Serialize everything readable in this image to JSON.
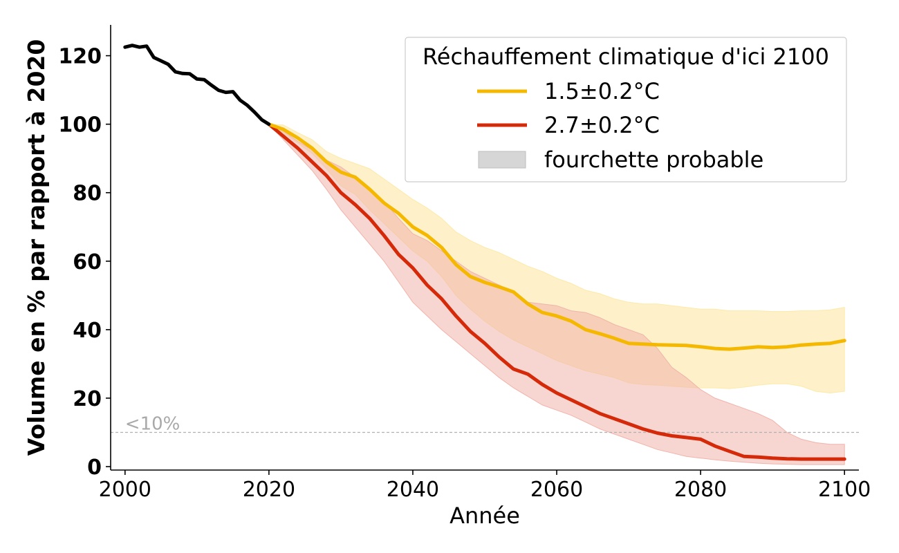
{
  "chart_data": {
    "type": "line",
    "xlabel": "Année",
    "ylabel": "Volume en % par rapport à 2020",
    "xlim": [
      1998,
      2102
    ],
    "ylim": [
      -1,
      129
    ],
    "xticks": [
      2000,
      2020,
      2040,
      2060,
      2080,
      2100
    ],
    "yticks": [
      0,
      20,
      40,
      60,
      80,
      100,
      120
    ],
    "reference_line": {
      "y": 10,
      "label": "<10%",
      "color": "#b0b0b0"
    },
    "legend": {
      "title": "Réchauffement climatique d'ici 2100",
      "position": "top-right",
      "entries": [
        {
          "label": "1.5±0.2°C",
          "kind": "line",
          "color": "#f5b800"
        },
        {
          "label": "2.7±0.2°C",
          "kind": "line",
          "color": "#d42a0a"
        },
        {
          "label": "fourchette probable",
          "kind": "patch",
          "color": "#d6d6d6"
        }
      ]
    },
    "historical": {
      "color": "#000000",
      "x": [
        2000,
        2001,
        2002,
        2003,
        2004,
        2005,
        2006,
        2007,
        2008,
        2009,
        2010,
        2011,
        2012,
        2013,
        2014,
        2015,
        2016,
        2017,
        2018,
        2019,
        2020
      ],
      "y": [
        122.5,
        123,
        122.5,
        122.8,
        119.5,
        118.5,
        117.5,
        115.3,
        114.8,
        114.7,
        113.2,
        113,
        111.4,
        109.9,
        109.3,
        109.5,
        107,
        105.5,
        103.5,
        101.3,
        100
      ]
    },
    "series": [
      {
        "name": "1.5±0.2°C",
        "color": "#f5b800",
        "band_color": "#fde9a8",
        "x": [
          2020,
          2022,
          2024,
          2026,
          2028,
          2030,
          2032,
          2034,
          2036,
          2038,
          2040,
          2042,
          2044,
          2046,
          2048,
          2050,
          2052,
          2054,
          2056,
          2058,
          2060,
          2062,
          2064,
          2066,
          2068,
          2070,
          2072,
          2074,
          2076,
          2078,
          2080,
          2082,
          2084,
          2086,
          2088,
          2090,
          2092,
          2094,
          2096,
          2098,
          2100
        ],
        "y": [
          100,
          98.5,
          96,
          93,
          89,
          86,
          84.5,
          81,
          77,
          74,
          70,
          67.5,
          64,
          59,
          55.5,
          53.8,
          52.5,
          51,
          47.5,
          45,
          44,
          42.5,
          40,
          38.8,
          37.5,
          36,
          35.8,
          35.6,
          35.5,
          35.4,
          35,
          34.5,
          34.3,
          34.6,
          35,
          34.8,
          35,
          35.5,
          35.8,
          36,
          36.8
        ],
        "lower": [
          100,
          97.5,
          94.5,
          91.5,
          87,
          82,
          79.5,
          75,
          71,
          67,
          63,
          60,
          55.5,
          50,
          46,
          42.5,
          39.5,
          37,
          35,
          33,
          31,
          29.5,
          28,
          27,
          26,
          24.5,
          24,
          23.8,
          23.5,
          23.2,
          23,
          23,
          22.8,
          23.2,
          23.8,
          24.2,
          24.2,
          23.5,
          22,
          21.5,
          22
        ],
        "upper": [
          100,
          99.8,
          97.5,
          95.5,
          92,
          90,
          88.5,
          87,
          84,
          81,
          78,
          75.5,
          72.5,
          68.5,
          66,
          64,
          62.5,
          60.5,
          58.5,
          57,
          55,
          53.5,
          51.5,
          50.5,
          49,
          48,
          47.5,
          47.5,
          47,
          46.5,
          46,
          46,
          45.5,
          45.5,
          45.5,
          45.3,
          45.3,
          45.5,
          45.5,
          45.8,
          46.5
        ]
      },
      {
        "name": "2.7±0.2°C",
        "color": "#d42a0a",
        "band_color": "#f1b3aa",
        "x": [
          2020,
          2022,
          2024,
          2026,
          2028,
          2030,
          2032,
          2034,
          2036,
          2038,
          2040,
          2042,
          2044,
          2046,
          2048,
          2050,
          2052,
          2054,
          2056,
          2058,
          2060,
          2062,
          2064,
          2066,
          2068,
          2070,
          2072,
          2074,
          2076,
          2078,
          2080,
          2082,
          2084,
          2086,
          2088,
          2090,
          2092,
          2094,
          2096,
          2098,
          2100
        ],
        "y": [
          100,
          96.5,
          93,
          89,
          85,
          80,
          76.5,
          72.5,
          67.5,
          62,
          58,
          53,
          49,
          44,
          39.5,
          36,
          32,
          28.5,
          27,
          24,
          21.5,
          19.5,
          17.5,
          15.5,
          14,
          12.5,
          11,
          9.8,
          9,
          8.5,
          8,
          6,
          4.5,
          3,
          2.8,
          2.5,
          2.3,
          2.2,
          2.2,
          2.2,
          2.2
        ],
        "lower": [
          100,
          95.5,
          91,
          86.5,
          81,
          75,
          70,
          65,
          60,
          54,
          48,
          44,
          40,
          36.5,
          33,
          29.5,
          26,
          23,
          20.5,
          18,
          16.5,
          15,
          13,
          11,
          9.5,
          8,
          6.5,
          5,
          4,
          3,
          2.5,
          2,
          1.6,
          1.3,
          1,
          0.8,
          0.7,
          0.6,
          0.6,
          0.6,
          0.6
        ],
        "upper": [
          100,
          98,
          95,
          92.5,
          89.5,
          87.5,
          84.5,
          81,
          77.5,
          72.5,
          68,
          66,
          63,
          60,
          57,
          55,
          53,
          51,
          48,
          47.5,
          47,
          45.5,
          45,
          43.5,
          41.5,
          40,
          38.5,
          34.5,
          29,
          26,
          22.5,
          20,
          18.5,
          17,
          15.5,
          13.5,
          10,
          8,
          7,
          6.5,
          6.5
        ]
      }
    ]
  }
}
